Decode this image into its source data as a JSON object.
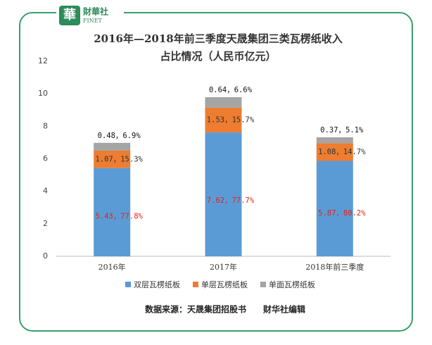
{
  "logo": {
    "name": "財華社",
    "sub": "FINET"
  },
  "chart_data": {
    "type": "stacked-bar",
    "title": [
      "2016年—2018年前三季度天晟集团三类瓦楞纸收入",
      "占比情况（人民币亿元）"
    ],
    "categories": [
      "2016年",
      "2017年",
      "2018年前三季度"
    ],
    "series": [
      {
        "name": "双层瓦楞纸板",
        "color": "#5b9bd5",
        "label_color": "#e8201a",
        "values": [
          5.43,
          7.62,
          5.87
        ],
        "value_labels": [
          "5.43，77.8%",
          "7.62，77.7%",
          "5.87，80.2%"
        ]
      },
      {
        "name": "单层瓦楞纸板",
        "color": "#ed7d31",
        "label_color": "#333333",
        "values": [
          1.07,
          1.53,
          1.08
        ],
        "value_labels": [
          "1.07，15.3%",
          "1.53，15.7%",
          "1.08，14.7%"
        ]
      },
      {
        "name": "单面瓦楞纸板",
        "color": "#a5a5a5",
        "label_color": "#111111",
        "values": [
          0.48,
          0.64,
          0.37
        ],
        "value_labels": [
          "0.48，6.9%",
          "0.64，6.6%",
          "0.37，5.1%"
        ]
      }
    ],
    "ylim": [
      0,
      12
    ],
    "yticks": [
      0,
      2,
      4,
      6,
      8,
      10,
      12
    ],
    "grid": false,
    "source": "数据来源：天晟集团招股书　　财华社编辑"
  }
}
